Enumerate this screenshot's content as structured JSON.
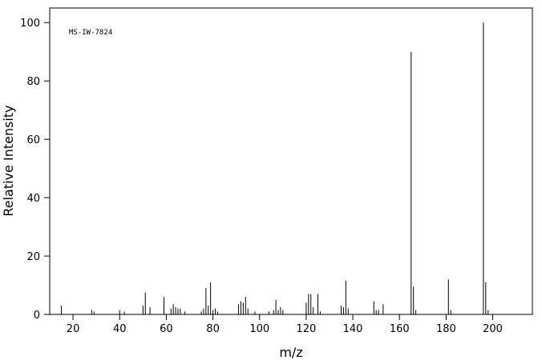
{
  "chart_data": {
    "type": "stem",
    "annotation": "MS-IW-7824",
    "x_label": "m/z",
    "y_label": "Relative Intensity",
    "x": [
      15,
      28,
      29,
      40,
      42,
      50,
      51,
      53,
      59,
      62,
      63,
      64,
      65,
      66,
      68,
      75,
      76,
      77,
      78,
      79,
      80,
      81,
      82,
      91,
      92,
      93,
      94,
      95,
      98,
      104,
      106,
      107,
      108,
      109,
      110,
      120,
      121,
      122,
      123,
      125,
      126,
      135,
      136,
      137,
      138,
      149,
      150,
      151,
      153,
      165,
      166,
      167,
      181,
      182,
      196,
      197,
      198
    ],
    "values": [
      3,
      1.5,
      1,
      1.5,
      1,
      3,
      7.5,
      2.5,
      6,
      2,
      3.5,
      2.5,
      2,
      2,
      1,
      1,
      2,
      9,
      3,
      11,
      1.5,
      2,
      1,
      3.5,
      4.5,
      4,
      6,
      2,
      1,
      1,
      1.5,
      5,
      1.5,
      2.5,
      1.5,
      4,
      7,
      7,
      2.5,
      7,
      1,
      3,
      2.5,
      11.5,
      2,
      4.5,
      1.5,
      1.5,
      3.5,
      90,
      9.5,
      1.5,
      12,
      1.5,
      100,
      11,
      1.5
    ],
    "color": "#000000",
    "xlim": [
      10,
      217
    ],
    "ylim": [
      0,
      105
    ],
    "xticks": [
      20,
      40,
      60,
      80,
      100,
      120,
      140,
      160,
      180,
      200
    ],
    "yticks": [
      0,
      20,
      40,
      60,
      80,
      100
    ]
  }
}
